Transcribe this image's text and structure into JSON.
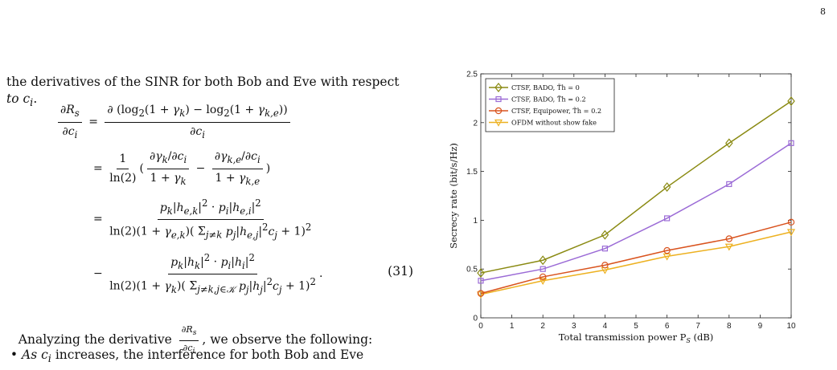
{
  "page_number": "8",
  "text": {
    "intro_line1": "the derivatives of the SINR for both Bob and Eve with respect",
    "intro_line2": "to c",
    "intro_sub": "i",
    "intro_end": ".",
    "eq_number": "(31)",
    "analysis_prefix": "Analyzing the derivative",
    "analysis_suffix": ", we observe the following:",
    "bullet_text": "As c",
    "bullet_sub": "i",
    "bullet_rest": " increases, the interference for both Bob and Eve"
  },
  "chart_data": {
    "type": "line",
    "xlabel": "Total transmission power P",
    "xlabel_sub": "S",
    "xlabel_unit": " (dB)",
    "ylabel": "Secrecy rate (bit/s/Hz)",
    "xlim": [
      0,
      10
    ],
    "ylim": [
      0,
      2.5
    ],
    "xticks": [
      0,
      1,
      2,
      3,
      4,
      5,
      6,
      7,
      8,
      9,
      10
    ],
    "yticks": [
      0,
      0.5,
      1,
      1.5,
      2,
      2.5
    ],
    "ytick_labels": [
      "0",
      "0.5",
      "1",
      "1.5",
      "2",
      "2.5"
    ],
    "grid": false,
    "legend_position": "top-left",
    "x": [
      0,
      2,
      4,
      6,
      8,
      10
    ],
    "series": [
      {
        "name": "CTSF, BADO, T̃h = 0",
        "color": "#8a8a12",
        "marker": "diamond",
        "values": [
          0.46,
          0.59,
          0.85,
          1.34,
          1.79,
          2.22
        ]
      },
      {
        "name": "CTSF, BADO, T̃h = 0.2",
        "color": "#9b6bd6",
        "marker": "square",
        "values": [
          0.38,
          0.5,
          0.71,
          1.02,
          1.37,
          1.79
        ]
      },
      {
        "name": "CTSF, Equipower, T̃h = 0.2",
        "color": "#d9531e",
        "marker": "circle",
        "values": [
          0.25,
          0.42,
          0.54,
          0.69,
          0.81,
          0.98
        ]
      },
      {
        "name": "OFDM without show fake",
        "color": "#edb120",
        "marker": "triangle-down",
        "values": [
          0.24,
          0.38,
          0.49,
          0.63,
          0.73,
          0.88
        ]
      }
    ]
  }
}
